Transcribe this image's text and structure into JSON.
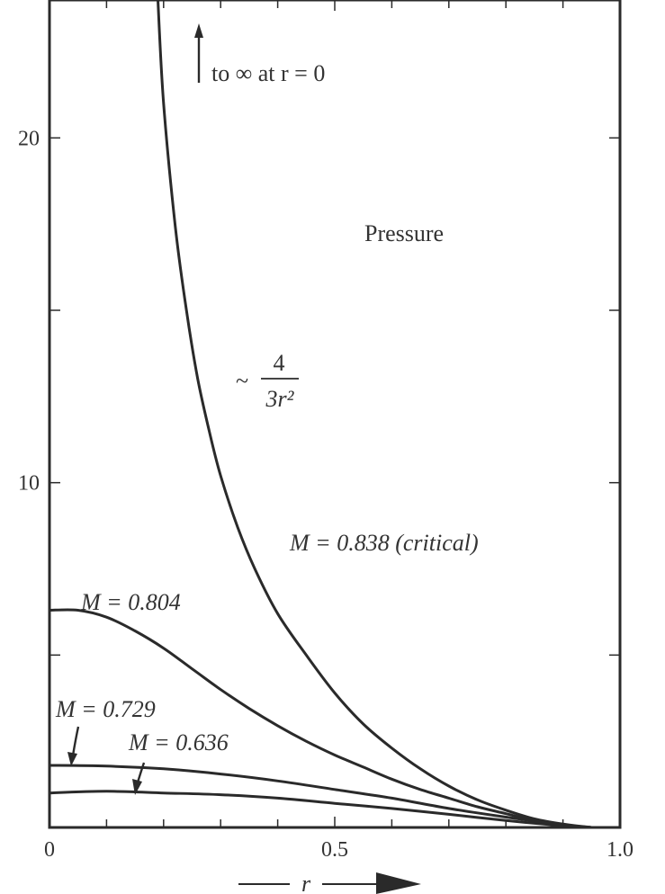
{
  "chart_data": {
    "type": "line",
    "title": "",
    "xlabel": "r",
    "ylabel": "",
    "xlim": [
      0,
      1.0
    ],
    "ylim": [
      0,
      24
    ],
    "x_ticks": [
      {
        "value": 0,
        "label": "0"
      },
      {
        "value": 0.5,
        "label": "0.5"
      },
      {
        "value": 1.0,
        "label": "1.0"
      }
    ],
    "y_ticks": [
      {
        "value": 10,
        "label": "10"
      },
      {
        "value": 20,
        "label": "20"
      }
    ],
    "series": [
      {
        "name": "M = 0.838 (critical)",
        "x": [
          0.19,
          0.2,
          0.22,
          0.24,
          0.26,
          0.28,
          0.3,
          0.33,
          0.36,
          0.4,
          0.45,
          0.5,
          0.55,
          0.6,
          0.65,
          0.7,
          0.75,
          0.8,
          0.85,
          0.9,
          0.95
        ],
        "y": [
          24.0,
          21.0,
          17.5,
          15.0,
          13.0,
          11.5,
          10.2,
          8.7,
          7.5,
          6.2,
          5.0,
          3.9,
          3.0,
          2.3,
          1.7,
          1.2,
          0.8,
          0.5,
          0.25,
          0.1,
          0.0
        ]
      },
      {
        "name": "M = 0.804",
        "x": [
          0,
          0.05,
          0.1,
          0.15,
          0.2,
          0.25,
          0.3,
          0.35,
          0.4,
          0.45,
          0.5,
          0.55,
          0.6,
          0.65,
          0.7,
          0.75,
          0.8,
          0.85,
          0.9,
          0.95
        ],
        "y": [
          6.3,
          6.3,
          6.1,
          5.7,
          5.2,
          4.6,
          4.0,
          3.45,
          2.95,
          2.5,
          2.1,
          1.75,
          1.4,
          1.1,
          0.85,
          0.6,
          0.4,
          0.2,
          0.07,
          0.0
        ]
      },
      {
        "name": "M = 0.729",
        "x": [
          0,
          0.1,
          0.2,
          0.3,
          0.4,
          0.5,
          0.6,
          0.7,
          0.8,
          0.9,
          0.95
        ],
        "y": [
          1.8,
          1.78,
          1.7,
          1.55,
          1.35,
          1.1,
          0.85,
          0.55,
          0.3,
          0.08,
          0.0
        ]
      },
      {
        "name": "M = 0.636",
        "x": [
          0,
          0.1,
          0.2,
          0.3,
          0.4,
          0.5,
          0.6,
          0.7,
          0.8,
          0.9,
          0.95
        ],
        "y": [
          1.0,
          1.05,
          1.0,
          0.95,
          0.85,
          0.7,
          0.55,
          0.38,
          0.2,
          0.05,
          0.0
        ]
      }
    ],
    "annotations": {
      "infinity_note": "to ∞ at r = 0",
      "pressure_label": "Pressure",
      "asymptote_tilde": "~",
      "asymptote_numerator": "4",
      "asymptote_denominator": "3r²",
      "label_m838": "M = 0.838 (critical)",
      "label_m804": "M = 0.804",
      "label_m729": "M =  0.729",
      "label_m636": "M = 0.636"
    },
    "grid": false,
    "legend": "none"
  }
}
